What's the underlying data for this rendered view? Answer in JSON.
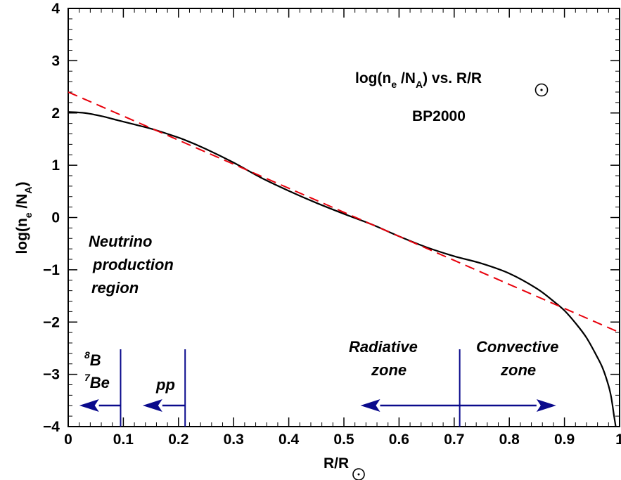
{
  "chart_data": {
    "type": "line",
    "title": "log(n_e /N_A)  vs.  R/R_sun",
    "subtitle": "BP2000",
    "xlabel": "R/R_sun",
    "ylabel": "log(n_e /N_A)",
    "xlim": [
      0,
      1
    ],
    "ylim": [
      -4,
      4
    ],
    "grid": false,
    "x_ticks": [
      0,
      0.1,
      0.2,
      0.3,
      0.4,
      0.5,
      0.6,
      0.7,
      0.8,
      0.9,
      1
    ],
    "x_tick_labels": [
      "0",
      "0.1",
      "0.2",
      "0.3",
      "0.4",
      "0.5",
      "0.6",
      "0.7",
      "0.8",
      "0.9",
      "1"
    ],
    "y_ticks": [
      -4,
      -3,
      -2,
      -1,
      0,
      1,
      2,
      3,
      4
    ],
    "y_tick_labels": [
      "−4",
      "−3",
      "−2",
      "−1",
      "0",
      "1",
      "2",
      "3",
      "4"
    ],
    "series": [
      {
        "style": "solid",
        "color": "#000000",
        "x": [
          0.0,
          0.03,
          0.06,
          0.09,
          0.12,
          0.15,
          0.18,
          0.21,
          0.25,
          0.3,
          0.35,
          0.4,
          0.45,
          0.5,
          0.55,
          0.6,
          0.65,
          0.7,
          0.75,
          0.8,
          0.85,
          0.88,
          0.9,
          0.92,
          0.94,
          0.96,
          0.97,
          0.98,
          0.985,
          0.99,
          0.993
        ],
        "y": [
          2.02,
          2.0,
          1.94,
          1.86,
          1.78,
          1.7,
          1.6,
          1.49,
          1.31,
          1.05,
          0.76,
          0.51,
          0.28,
          0.07,
          -0.13,
          -0.36,
          -0.57,
          -0.74,
          -0.88,
          -1.07,
          -1.36,
          -1.6,
          -1.78,
          -2.02,
          -2.3,
          -2.68,
          -2.9,
          -3.22,
          -3.45,
          -3.8,
          -4.0
        ]
      },
      {
        "style": "dashed",
        "color": "#e8000b",
        "x": [
          0.0,
          1.0
        ],
        "y": [
          2.4,
          -2.2
        ]
      }
    ],
    "annotations": {
      "neutrino": [
        "Neutrino",
        "production",
        "region"
      ],
      "b8": {
        "sup": "8",
        "text": "B"
      },
      "be7": {
        "sup": "7",
        "text": "Be"
      },
      "pp": "pp",
      "radiative": [
        "Radiative",
        "zone"
      ],
      "convective": [
        "Convective",
        "zone"
      ]
    },
    "markers": {
      "color": "#0a0a8c",
      "vertical_lines_x": [
        0.095,
        0.212,
        0.71
      ],
      "arrows": [
        {
          "from": 0.095,
          "to": 0.02
        },
        {
          "from": 0.212,
          "to": 0.135
        },
        {
          "from": 0.71,
          "to": 0.53
        },
        {
          "from": 0.71,
          "to": 0.885
        }
      ]
    }
  },
  "labels": {
    "title_main": "log(n",
    "title_e": "e",
    "title_mid": " /N",
    "title_A": "A",
    "title_end": ")  vs.  R/R",
    "subtitle": "BP2000",
    "ylabel_main": "log(n",
    "ylabel_e": "e",
    "ylabel_mid": " /N",
    "ylabel_A": "A",
    "ylabel_end": ")",
    "xlabel_main": "R/R",
    "neutrino_1": "Neutrino",
    "neutrino_2": "production",
    "neutrino_3": "region",
    "b8_sup": "8",
    "b8_text": "B",
    "be7_sup": "7",
    "be7_text": "Be",
    "pp": "pp",
    "radiative_1": "Radiative",
    "radiative_2": "zone",
    "convective_1": "Convective",
    "convective_2": "zone"
  }
}
